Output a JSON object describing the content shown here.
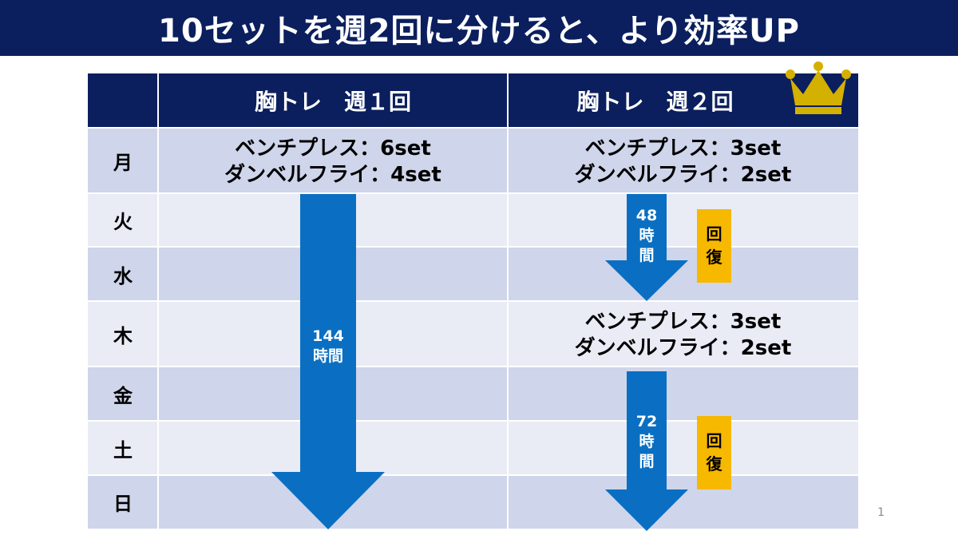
{
  "title": "10セットを週2回に分けると、より効率UP",
  "headers": {
    "col1": "胸トレ　週１回",
    "col2": "胸トレ　週２回"
  },
  "days": [
    "月",
    "火",
    "水",
    "木",
    "金",
    "土",
    "日"
  ],
  "once_week": {
    "monday": {
      "line1": "ベンチプレス：6set",
      "line2": "ダンベルフライ：4set"
    },
    "arrow": {
      "value": "144",
      "unit": "時間"
    }
  },
  "twice_week": {
    "monday": {
      "line1": "ベンチプレス：3set",
      "line2": "ダンベルフライ：2set"
    },
    "arrow1": {
      "value": "48",
      "u1": "時",
      "u2": "間"
    },
    "recovery1": {
      "c1": "回",
      "c2": "復"
    },
    "thursday": {
      "line1": "ベンチプレス：3set",
      "line2": "ダンベルフライ：2set"
    },
    "arrow2": {
      "value": "72",
      "u1": "時",
      "u2": "間"
    },
    "recovery2": {
      "c1": "回",
      "c2": "復"
    }
  },
  "page_number": "1",
  "colors": {
    "navy": "#0b1f5e",
    "row_dark": "#cfd5ea",
    "row_light": "#e9ecf5",
    "arrow": "#0a6fc2",
    "badge": "#f7b800",
    "crown": "#d4b000"
  },
  "icons": {
    "crown": "crown-icon"
  }
}
